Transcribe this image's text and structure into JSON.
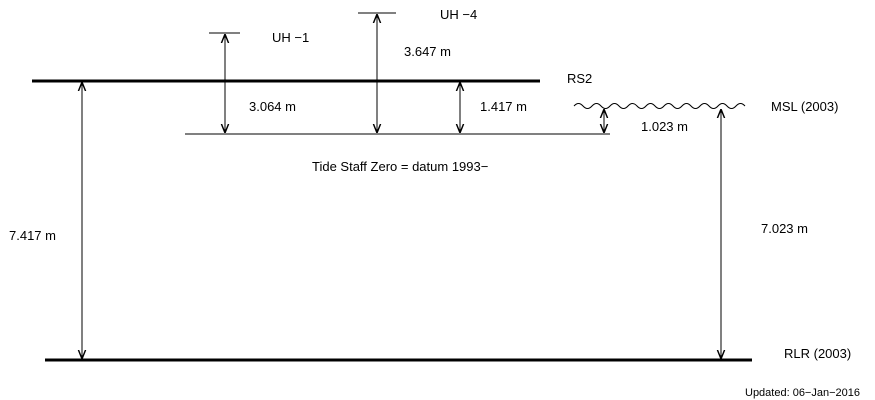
{
  "diagram": {
    "benchmarks": {
      "uh1": "UH −1",
      "uh4": "UH −4",
      "rs2": "RS2"
    },
    "levels": {
      "msl": "MSL (2003)",
      "rlr": "RLR (2003)",
      "tide_staff_zero": "Tide Staff Zero = datum 1993−"
    },
    "measurements": {
      "uh4_to_tsz": "3.647 m",
      "uh1_to_tsz": "3.064 m",
      "rs2_to_tsz": "1.417 m",
      "msl_to_tsz": "1.023 m",
      "rs2_to_rlr": "7.417 m",
      "msl_to_rlr": "7.023 m"
    },
    "footer": {
      "updated": "Updated: 06−Jan−2016"
    }
  }
}
